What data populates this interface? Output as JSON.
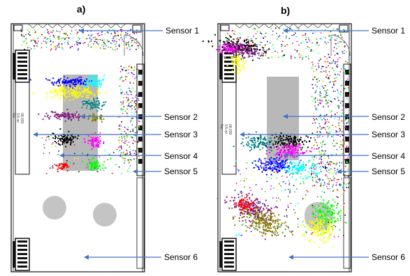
{
  "panels": [
    {
      "title": "a)",
      "room_label": [
        "09.030",
        "3.5 m²",
        "Vw"
      ],
      "sensors": [
        "Sensor 1",
        "Sensor 2",
        "Sensor 3",
        "Sensor 4",
        "Sensor 5",
        "Sensor 6"
      ]
    },
    {
      "title": "b)",
      "room_label": [
        "09.030",
        "3.5 m²",
        "Vw"
      ],
      "sensors": [
        "Sensor 1",
        "Sensor 2",
        "Sensor 3",
        "Sensor 4",
        "Sensor 5",
        "Sensor 6"
      ]
    }
  ],
  "colors": {
    "arrow": "#4472C4",
    "shelf": "#b8b8b8",
    "wall": "#111111",
    "clusters": [
      "#7f1f7f",
      "#ffff00",
      "#00ffff",
      "#008080",
      "#808000",
      "#000000",
      "#ff00ff",
      "#ff0000",
      "#00ff00",
      "#0000ff"
    ]
  }
}
